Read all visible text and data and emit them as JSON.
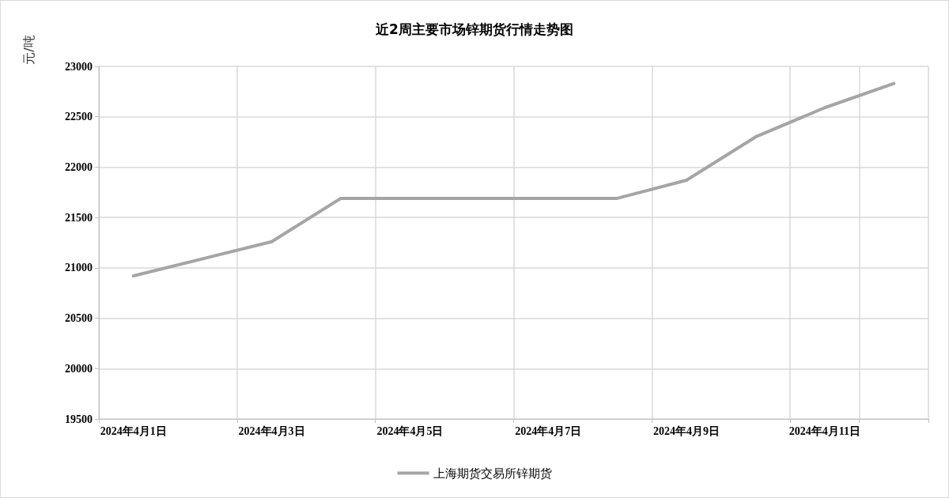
{
  "chart_data": {
    "type": "line",
    "title": "近2周主要市场锌期货行情走势图",
    "ylabel": "元/吨",
    "categories": [
      "2024年4月1日",
      null,
      "2024年4月3日",
      null,
      "2024年4月5日",
      null,
      "2024年4月7日",
      null,
      "2024年4月9日",
      null,
      "2024年4月11日",
      null
    ],
    "series": [
      {
        "name": "上海期货交易所锌期货",
        "color": "#a5a5a5",
        "values": [
          20920,
          21090,
          21260,
          21690,
          21690,
          21690,
          21690,
          21690,
          21870,
          22300,
          22590,
          22830
        ]
      }
    ],
    "ylim": [
      19500,
      23000
    ],
    "yticks": [
      19500,
      20000,
      20500,
      21000,
      21500,
      22000,
      22500,
      23000
    ],
    "grid": true,
    "legend": "bottom",
    "marker": "none",
    "line_style": "solid"
  }
}
